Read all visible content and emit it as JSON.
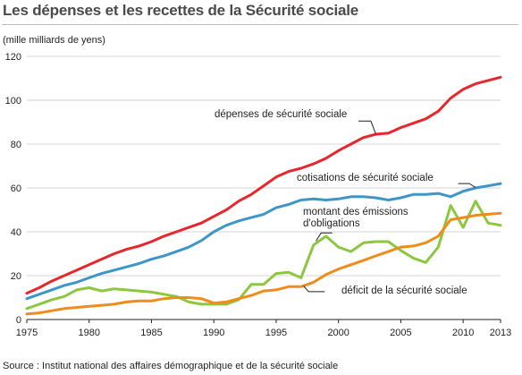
{
  "title": "Les dépenses et les recettes de la Sécurité sociale",
  "source": "Source : Institut national des affaires démographique et de la sécurité sociale",
  "chart_data": {
    "type": "line",
    "title": "Les dépenses et les recettes de la Sécurité sociale",
    "ylabel": "(mille milliards de yens)",
    "xlabel": "",
    "xlim": [
      1975,
      2013
    ],
    "ylim": [
      0,
      120
    ],
    "yticks": [
      0,
      20,
      40,
      60,
      80,
      100,
      120
    ],
    "xticks": [
      1975,
      1980,
      1985,
      1990,
      1995,
      2000,
      2005,
      2010,
      2013
    ],
    "grid": "horizontal",
    "legend": "inline annotations",
    "source": "Source : Institut national des affaires démographique et de la sécurité sociale",
    "series": [
      {
        "name": "dépenses de sécurité sociale",
        "color": "#e8262d",
        "x": [
          1975,
          1976,
          1977,
          1978,
          1979,
          1980,
          1981,
          1982,
          1983,
          1984,
          1985,
          1986,
          1987,
          1988,
          1989,
          1990,
          1991,
          1992,
          1993,
          1994,
          1995,
          1996,
          1997,
          1998,
          1999,
          2000,
          2001,
          2002,
          2003,
          2004,
          2005,
          2006,
          2007,
          2008,
          2009,
          2010,
          2011,
          2012,
          2013
        ],
        "values": [
          12,
          14.5,
          17.5,
          20,
          22.5,
          25,
          27.5,
          30,
          32,
          33.5,
          35.5,
          38,
          40,
          42,
          44,
          47,
          50,
          54,
          57,
          61,
          65,
          67.5,
          69,
          71,
          73.5,
          77,
          80,
          83,
          84.5,
          85,
          87.5,
          89.5,
          91.5,
          95,
          101,
          105,
          107.5,
          109,
          110.5
        ]
      },
      {
        "name": "cotisations de sécurité sociale",
        "color": "#3e95c8",
        "x": [
          1975,
          1976,
          1977,
          1978,
          1979,
          1980,
          1981,
          1982,
          1983,
          1984,
          1985,
          1986,
          1987,
          1988,
          1989,
          1990,
          1991,
          1992,
          1993,
          1994,
          1995,
          1996,
          1997,
          1998,
          1999,
          2000,
          2001,
          2002,
          2003,
          2004,
          2005,
          2006,
          2007,
          2008,
          2009,
          2010,
          2011,
          2012,
          2013
        ],
        "values": [
          9.5,
          11.5,
          13.5,
          15.5,
          17,
          19,
          21,
          22.5,
          24,
          25.5,
          27.5,
          29,
          31,
          33,
          36,
          40,
          43,
          45,
          46.5,
          48,
          51,
          52.5,
          54.5,
          55,
          54.5,
          55,
          56,
          56,
          55.5,
          54.5,
          55.5,
          57,
          57,
          57.5,
          56,
          58.5,
          60,
          61,
          62
        ]
      },
      {
        "name": "montant des émissions d'obligations",
        "color": "#8dc63f",
        "x": [
          1975,
          1976,
          1977,
          1978,
          1979,
          1980,
          1981,
          1982,
          1983,
          1984,
          1985,
          1986,
          1987,
          1988,
          1989,
          1990,
          1991,
          1992,
          1993,
          1994,
          1995,
          1996,
          1997,
          1998,
          1999,
          2000,
          2001,
          2002,
          2003,
          2004,
          2005,
          2006,
          2007,
          2008,
          2009,
          2010,
          2011,
          2012,
          2013
        ],
        "values": [
          5,
          7,
          9,
          10.5,
          13.5,
          14.5,
          13,
          14,
          13.5,
          13,
          12.5,
          11.5,
          10.5,
          8,
          7,
          7,
          7,
          9,
          16,
          16,
          21,
          21.5,
          19,
          34,
          38,
          33,
          31,
          35,
          35.5,
          35.5,
          31.5,
          28,
          26,
          33,
          52,
          42,
          54,
          44,
          43
        ]
      },
      {
        "name": "déficit de la sécurité sociale",
        "color": "#f08c1c",
        "x": [
          1975,
          1976,
          1977,
          1978,
          1979,
          1980,
          1981,
          1982,
          1983,
          1984,
          1985,
          1986,
          1987,
          1988,
          1989,
          1990,
          1991,
          1992,
          1993,
          1994,
          1995,
          1996,
          1997,
          1998,
          1999,
          2000,
          2001,
          2002,
          2003,
          2004,
          2005,
          2006,
          2007,
          2008,
          2009,
          2010,
          2011,
          2012,
          2013
        ],
        "values": [
          2.5,
          3,
          4,
          5,
          5.5,
          6,
          6.5,
          7,
          8,
          8.5,
          8.5,
          9.5,
          10,
          10,
          9.5,
          7.5,
          8,
          9.5,
          11,
          13,
          13.5,
          15,
          15,
          17,
          20.5,
          23,
          25,
          27,
          29,
          31,
          33,
          33.5,
          35,
          38,
          45.5,
          46.5,
          47.5,
          48,
          48.5
        ]
      }
    ],
    "annotations": [
      {
        "series": 0,
        "lines": [
          "dépenses de sécurité sociale"
        ],
        "line_at_year": 2003,
        "leader": [
          [
            2001.6,
            90.5
          ],
          [
            2002.6,
            90.5
          ],
          [
            2003,
            84.5
          ]
        ]
      },
      {
        "series": 1,
        "lines": [
          "cotisations de sécurité sociale"
        ],
        "line_at_year": 2011,
        "leader": [
          [
            2009.6,
            62
          ],
          [
            2010.5,
            62
          ],
          [
            2011,
            60.2
          ]
        ]
      },
      {
        "series": 2,
        "lines": [
          "montant des émissions",
          "d'obligations"
        ],
        "line_at_year": 1998,
        "leader": [
          [
            1999.5,
            39.5
          ],
          [
            1998.6,
            39.5
          ],
          [
            1998.2,
            35.8
          ]
        ]
      },
      {
        "series": 3,
        "lines": [
          "déficit de la sécurité sociale"
        ],
        "line_at_year": 1998,
        "leader": [
          [
            1998.9,
            12.7
          ],
          [
            1997.6,
            12.7
          ],
          [
            1997.2,
            15.3
          ]
        ]
      }
    ]
  }
}
